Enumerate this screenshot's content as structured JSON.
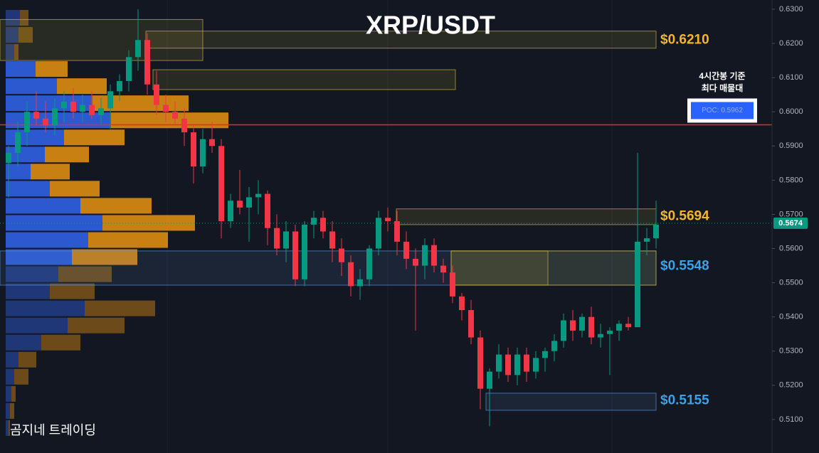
{
  "chart_data": {
    "type": "candlestick",
    "title": "XRP/USDT",
    "watermark": "곰지네 트레이딩",
    "up_color": "#089981",
    "down_color": "#f23645",
    "open": [
      0.585,
      0.588,
      0.594,
      0.6,
      0.598,
      0.596,
      0.601,
      0.603,
      0.6,
      0.602,
      0.599,
      0.601,
      0.606,
      0.609,
      0.616,
      0.621,
      0.608,
      0.602,
      0.6,
      0.598,
      0.594,
      0.584,
      0.592,
      0.59,
      0.568,
      0.574,
      0.572,
      0.575,
      0.576,
      0.566,
      0.56,
      0.565,
      0.551,
      0.567,
      0.569,
      0.565,
      0.56,
      0.556,
      0.549,
      0.551,
      0.56,
      0.569,
      0.568,
      0.562,
      0.557,
      0.555,
      0.561,
      0.555,
      0.553,
      0.546,
      0.542,
      0.534,
      0.519,
      0.524,
      0.529,
      0.523,
      0.529,
      0.524,
      0.528,
      0.53,
      0.533,
      0.539,
      0.536,
      0.54,
      0.534,
      0.535,
      0.536,
      0.538,
      0.537,
      0.562,
      0.563
    ],
    "high": [
      0.59,
      0.597,
      0.603,
      0.606,
      0.603,
      0.604,
      0.606,
      0.607,
      0.605,
      0.606,
      0.604,
      0.608,
      0.611,
      0.618,
      0.63,
      0.623,
      0.612,
      0.605,
      0.603,
      0.601,
      0.596,
      0.595,
      0.597,
      0.592,
      0.576,
      0.583,
      0.578,
      0.58,
      0.577,
      0.57,
      0.568,
      0.567,
      0.568,
      0.571,
      0.571,
      0.568,
      0.563,
      0.558,
      0.554,
      0.561,
      0.571,
      0.572,
      0.571,
      0.565,
      0.56,
      0.563,
      0.563,
      0.557,
      0.555,
      0.547,
      0.545,
      0.536,
      0.525,
      0.532,
      0.531,
      0.531,
      0.531,
      0.53,
      0.531,
      0.535,
      0.541,
      0.542,
      0.541,
      0.543,
      0.538,
      0.537,
      0.539,
      0.54,
      0.588,
      0.566,
      0.574
    ],
    "low": [
      0.575,
      0.584,
      0.59,
      0.596,
      0.594,
      0.593,
      0.597,
      0.598,
      0.597,
      0.598,
      0.596,
      0.595,
      0.603,
      0.606,
      0.612,
      0.605,
      0.599,
      0.597,
      0.596,
      0.59,
      0.579,
      0.582,
      0.588,
      0.563,
      0.566,
      0.57,
      0.562,
      0.57,
      0.561,
      0.558,
      0.556,
      0.549,
      0.549,
      0.563,
      0.563,
      0.556,
      0.552,
      0.546,
      0.545,
      0.549,
      0.558,
      0.565,
      0.558,
      0.554,
      0.536,
      0.551,
      0.553,
      0.55,
      0.544,
      0.539,
      0.532,
      0.513,
      0.508,
      0.522,
      0.521,
      0.52,
      0.521,
      0.522,
      0.524,
      0.527,
      0.531,
      0.533,
      0.534,
      0.532,
      0.531,
      0.523,
      0.533,
      0.536,
      0.537,
      0.558,
      0.56
    ],
    "close": [
      0.588,
      0.594,
      0.6,
      0.598,
      0.596,
      0.601,
      0.603,
      0.6,
      0.602,
      0.599,
      0.601,
      0.606,
      0.609,
      0.616,
      0.621,
      0.608,
      0.602,
      0.6,
      0.598,
      0.594,
      0.584,
      0.592,
      0.59,
      0.568,
      0.574,
      0.572,
      0.575,
      0.576,
      0.566,
      0.56,
      0.565,
      0.551,
      0.567,
      0.569,
      0.565,
      0.56,
      0.556,
      0.549,
      0.551,
      0.56,
      0.569,
      0.568,
      0.562,
      0.557,
      0.555,
      0.561,
      0.555,
      0.553,
      0.546,
      0.542,
      0.534,
      0.519,
      0.524,
      0.529,
      0.523,
      0.529,
      0.524,
      0.528,
      0.53,
      0.533,
      0.539,
      0.536,
      0.54,
      0.534,
      0.535,
      0.536,
      0.538,
      0.537,
      0.562,
      0.563,
      0.567
    ],
    "ylim": [
      0.5002,
      0.6327
    ],
    "yticks": [
      {
        "value": 0.51,
        "label": "0.5100"
      },
      {
        "value": 0.52,
        "label": "0.5200"
      },
      {
        "value": 0.53,
        "label": "0.5300"
      },
      {
        "value": 0.54,
        "label": "0.5400"
      },
      {
        "value": 0.55,
        "label": "0.5500"
      },
      {
        "value": 0.56,
        "label": "0.5600"
      },
      {
        "value": 0.57,
        "label": "0.5700"
      },
      {
        "value": 0.58,
        "label": "0.5800"
      },
      {
        "value": 0.59,
        "label": "0.5900"
      },
      {
        "value": 0.6,
        "label": "0.6000"
      },
      {
        "value": 0.61,
        "label": "0.6100"
      },
      {
        "value": 0.62,
        "label": "0.6200"
      },
      {
        "value": 0.63,
        "label": "0.6300"
      }
    ],
    "volume_profile": {
      "bins": [
        0.505,
        0.51,
        0.515,
        0.52,
        0.525,
        0.53,
        0.535,
        0.54,
        0.545,
        0.55,
        0.555,
        0.56,
        0.565,
        0.57,
        0.575,
        0.58,
        0.585,
        0.59,
        0.595,
        0.6,
        0.605,
        0.61,
        0.615,
        0.62,
        0.625,
        0.63
      ],
      "buy": [
        4,
        6,
        8,
        12,
        18,
        50,
        87,
        111,
        62,
        74,
        93,
        116,
        136,
        105,
        62,
        35,
        55,
        82,
        148,
        122,
        72,
        42,
        12,
        18,
        20
      ],
      "sell": [
        2,
        6,
        6,
        20,
        25,
        55,
        80,
        99,
        63,
        75,
        92,
        112,
        130,
        100,
        70,
        55,
        62,
        85,
        165,
        135,
        70,
        45,
        6,
        20,
        12
      ],
      "buy_color": "#2f5fe0",
      "sell_color": "#d98a12",
      "value_area": [
        0.555,
        0.615
      ]
    },
    "zones": [
      {
        "low": 0.615,
        "high": 0.627,
        "color": "#c9b13a"
      },
      {
        "low": 0.6186,
        "high": 0.6236,
        "color": "#c9b13a"
      },
      {
        "low": 0.6065,
        "high": 0.6123,
        "color": "#c9b13a"
      },
      {
        "low": 0.567,
        "high": 0.5716,
        "color": "#c9b13a"
      },
      {
        "low": 0.5493,
        "high": 0.5593,
        "color": "#5b8fd0"
      },
      {
        "low": 0.5493,
        "high": 0.5593,
        "color": "#c9b13a"
      },
      {
        "low": 0.5493,
        "high": 0.5593,
        "color": "#c9b13a"
      },
      {
        "low": 0.5127,
        "high": 0.5177,
        "color": "#5b8fd0"
      }
    ],
    "levels": [
      {
        "value": 0.621,
        "label": "$0.6210",
        "color": "#f5b52e"
      },
      {
        "value": 0.5694,
        "label": "$0.5694",
        "color": "#f5b52e"
      },
      {
        "value": 0.5548,
        "label": "$0.5548",
        "color": "#36a3ec"
      },
      {
        "value": 0.5155,
        "label": "$0.5155",
        "color": "#36a3ec"
      }
    ],
    "poc": {
      "value": 0.5962,
      "label": "POC: 0.5962",
      "color": "#f0262c"
    },
    "poc_note": [
      "4시간봉 기준",
      "최다 매물대"
    ],
    "last_price": {
      "value": 0.5674,
      "label": "0.5674"
    }
  }
}
